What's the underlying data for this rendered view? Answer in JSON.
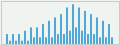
{
  "chart_data": {
    "type": "bar",
    "categories": [
      null,
      null,
      null,
      null,
      null,
      null,
      null,
      null,
      null,
      null,
      null,
      null,
      null,
      null,
      null,
      null,
      null,
      null,
      null,
      null,
      null,
      null,
      null,
      null,
      null,
      null,
      null,
      null,
      null,
      null,
      null,
      null,
      null,
      null,
      null,
      null
    ],
    "values": [
      3,
      1,
      3,
      1,
      3,
      1,
      4,
      1,
      5,
      2,
      5,
      2,
      6,
      2,
      7,
      2,
      8,
      3,
      9,
      3,
      11,
      4,
      12,
      5,
      11,
      4,
      10,
      3,
      9,
      3,
      8,
      2,
      7,
      2,
      6,
      2
    ],
    "color": "#4fa8d8",
    "ylim": [
      0,
      12.96
    ],
    "tick_labels": false
  }
}
